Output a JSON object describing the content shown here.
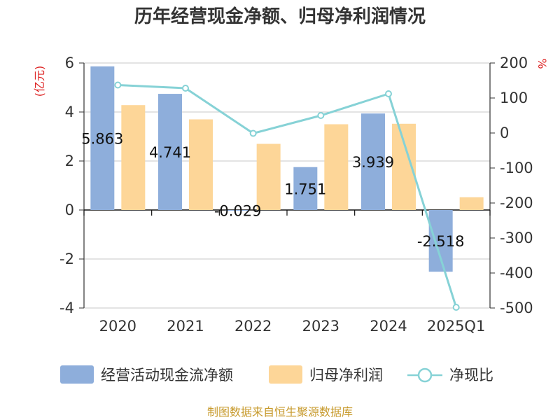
{
  "chart_data": {
    "type": "bar",
    "title": "历年经营现金净额、归母净利润情况",
    "categories": [
      "2020",
      "2021",
      "2022",
      "2023",
      "2024",
      "2025Q1"
    ],
    "series": [
      {
        "name": "经营活动现金流净额",
        "kind": "bar",
        "axis": "left",
        "color": "#8eaedb",
        "values": [
          5.863,
          4.741,
          -0.029,
          1.751,
          3.939,
          -2.518
        ],
        "labels": [
          "5.863",
          "4.741",
          "-0.029",
          "1.751",
          "3.939",
          "-2.518"
        ]
      },
      {
        "name": "归母净利润",
        "kind": "bar",
        "axis": "left",
        "color": "#fdd698",
        "values": [
          4.28,
          3.7,
          2.7,
          3.5,
          3.52,
          0.52
        ]
      },
      {
        "name": "净现比",
        "kind": "line",
        "axis": "right",
        "color": "#86d2d6",
        "values": [
          137,
          128,
          -1,
          50,
          112,
          -498
        ]
      }
    ],
    "y_left": {
      "unit_label": "(亿元)",
      "range": [
        -4,
        6
      ],
      "ticks": [
        "6",
        "4",
        "2",
        "0",
        "-2",
        "-4"
      ],
      "tick_values": [
        6,
        4,
        2,
        0,
        -2,
        -4
      ]
    },
    "y_right": {
      "unit_label": "%",
      "range": [
        -500,
        200
      ],
      "ticks": [
        "200",
        "100",
        "0",
        "-100",
        "-200",
        "-300",
        "-400",
        "-500"
      ],
      "tick_values": [
        200,
        100,
        0,
        -100,
        -200,
        -300,
        -400,
        -500
      ]
    },
    "grid": true,
    "legend_position": "bottom"
  },
  "legend": [
    {
      "label": "经营活动现金流净额",
      "swatch": "bar",
      "color": "#8eaedb"
    },
    {
      "label": "归母净利润",
      "swatch": "bar",
      "color": "#fdd698"
    },
    {
      "label": "净现比",
      "swatch": "line",
      "color": "#86d2d6"
    }
  ],
  "source": "制图数据来自恒生聚源数据库"
}
